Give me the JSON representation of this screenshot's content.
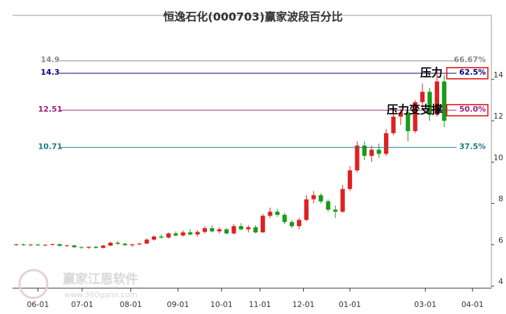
{
  "chart_data": {
    "type": "candlestick",
    "title": "恒逸石化(000703)赢家波段百分比",
    "watermark": {
      "brand": "赢家江恩软件",
      "url": "www.360gann.com"
    },
    "xlim": [
      0,
      66
    ],
    "xticks": [
      {
        "value": 3.5,
        "label": "06-01"
      },
      {
        "value": 9.6,
        "label": "07-01"
      },
      {
        "value": 16.3,
        "label": "08-01"
      },
      {
        "value": 22.8,
        "label": "09-01"
      },
      {
        "value": 28.8,
        "label": "10-01"
      },
      {
        "value": 34.1,
        "label": "11-01"
      },
      {
        "value": 40.1,
        "label": "12-01"
      },
      {
        "value": 46.5,
        "label": "01-01"
      },
      {
        "value": 56.9,
        "label": "03-01"
      },
      {
        "value": 63.4,
        "label": "04-01"
      }
    ],
    "ylim": [
      3.9,
      17.1
    ],
    "yticks": [
      4,
      6,
      8,
      10,
      12,
      14
    ],
    "up_color": "#e02020",
    "down_color": "#1a9a1a",
    "open": [
      6.0,
      6.02,
      5.98,
      6.01,
      5.97,
      6.0,
      6.03,
      5.95,
      5.97,
      5.88,
      5.86,
      5.9,
      5.85,
      5.96,
      6.1,
      6.05,
      5.98,
      6.02,
      6.06,
      6.25,
      6.4,
      6.35,
      6.55,
      6.45,
      6.6,
      6.5,
      6.62,
      6.8,
      6.65,
      6.75,
      6.55,
      6.9,
      6.75,
      6.85,
      6.6,
      7.4,
      7.6,
      7.45,
      7.1,
      6.9,
      7.2,
      8.2,
      8.4,
      8.1,
      7.7,
      7.6,
      8.7,
      9.6,
      10.8,
      10.3,
      10.6,
      10.4,
      11.4,
      12.2,
      12.4,
      11.5,
      12.9,
      13.4,
      12.3,
      13.9
    ],
    "high": [
      6.05,
      6.06,
      6.04,
      6.05,
      6.03,
      6.06,
      6.05,
      6.0,
      6.0,
      5.94,
      5.92,
      5.95,
      6.0,
      6.15,
      6.18,
      6.1,
      6.05,
      6.1,
      6.3,
      6.45,
      6.5,
      6.6,
      6.65,
      6.7,
      6.75,
      6.7,
      6.9,
      6.95,
      6.85,
      6.8,
      7.0,
      7.05,
      6.95,
      6.95,
      7.5,
      7.8,
      7.75,
      7.55,
      7.2,
      7.3,
      8.4,
      8.6,
      8.5,
      8.2,
      7.9,
      8.9,
      9.8,
      11.0,
      11.0,
      10.8,
      10.9,
      11.6,
      12.4,
      12.6,
      12.5,
      13.0,
      13.8,
      13.6,
      14.6,
      14.2
    ],
    "low": [
      5.95,
      5.96,
      5.94,
      5.96,
      5.93,
      5.95,
      5.92,
      5.9,
      5.86,
      5.82,
      5.8,
      5.82,
      5.83,
      5.94,
      6.0,
      5.95,
      5.9,
      5.98,
      6.04,
      6.2,
      6.3,
      6.3,
      6.4,
      6.4,
      6.45,
      6.4,
      6.55,
      6.6,
      6.55,
      6.5,
      6.5,
      6.7,
      6.6,
      6.55,
      6.58,
      7.3,
      7.35,
      7.0,
      6.8,
      6.75,
      7.15,
      8.0,
      8.0,
      7.6,
      7.3,
      7.55,
      8.6,
      9.5,
      10.1,
      10.0,
      10.2,
      10.3,
      11.3,
      11.8,
      11.0,
      11.4,
      12.6,
      12.0,
      12.2,
      11.7
    ],
    "close": [
      6.02,
      5.98,
      6.01,
      5.97,
      6.0,
      6.03,
      5.95,
      5.97,
      5.88,
      5.86,
      5.9,
      5.85,
      5.96,
      6.1,
      6.05,
      5.98,
      6.02,
      6.06,
      6.25,
      6.4,
      6.35,
      6.55,
      6.45,
      6.6,
      6.5,
      6.62,
      6.8,
      6.65,
      6.75,
      6.55,
      6.9,
      6.75,
      6.85,
      6.6,
      7.4,
      7.6,
      7.45,
      7.1,
      6.9,
      7.2,
      8.2,
      8.4,
      8.1,
      7.7,
      7.6,
      8.7,
      9.6,
      10.8,
      10.3,
      10.6,
      10.4,
      11.4,
      12.2,
      12.4,
      11.5,
      12.9,
      13.4,
      12.3,
      13.9,
      12.0
    ],
    "levels": [
      {
        "price": 14.9,
        "pct": {
          "value": 66.67,
          "label": "66.67%"
        },
        "color": "#888888",
        "highlight": false
      },
      {
        "price": 14.3,
        "pct": {
          "value": 62.5,
          "label": "62.5%"
        },
        "color": "#000080",
        "highlight": true,
        "note": "压力"
      },
      {
        "price": 12.51,
        "pct": {
          "value": 50.0,
          "label": "50.0%"
        },
        "color": "#a0207a",
        "highlight": true,
        "note": "压力变支撑"
      },
      {
        "price": 10.71,
        "pct": {
          "value": 37.5,
          "label": "37.5%"
        },
        "color": "#1a7a80",
        "highlight": false
      }
    ]
  }
}
